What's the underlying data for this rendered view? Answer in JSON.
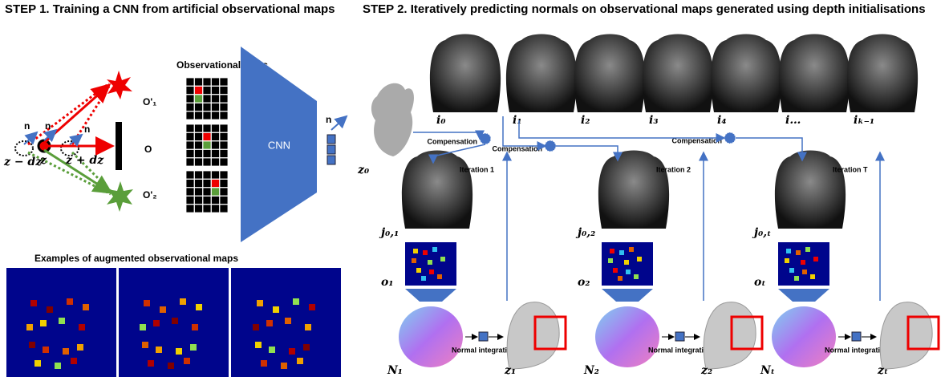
{
  "step1": {
    "title": "STEP 1. Training a CNN from artificial observational maps",
    "maps_title": "Observational Maps",
    "normal_labels": [
      "n",
      "n",
      "n"
    ],
    "depth_labels": [
      "z − dz",
      "z",
      "z + dz"
    ],
    "map_labels": [
      "O'₁",
      "O",
      "O'₂"
    ],
    "network": "CNN",
    "output_label": "n",
    "examples_title": "Examples of augmented observational maps"
  },
  "step2": {
    "title": "STEP 2. Iteratively predicting normals on observational maps generated using depth initialisations",
    "image_labels": [
      "i₀",
      "i₁",
      "i₂",
      "i₃",
      "i₄",
      "i…",
      "iₖ₋₁"
    ],
    "initial_depth": "z₀",
    "compensation_labels": [
      "Compensation",
      "Compensation",
      "Compensation"
    ],
    "iteration_labels": [
      "Iteration 1",
      "Iteration 2",
      "Iteration T"
    ],
    "image_j_labels": [
      "j₀,₁",
      "j₀,₂",
      "j₀,ₜ"
    ],
    "map_labels": [
      "o₁",
      "o₂",
      "oₜ"
    ],
    "normal_labels": [
      "N₁",
      "N₂",
      "Nₜ"
    ],
    "depth_labels": [
      "z₁",
      "z₂",
      "zₜ"
    ],
    "integration_labels": [
      "Normal integration",
      "Normal integration",
      "Normal integration"
    ]
  }
}
